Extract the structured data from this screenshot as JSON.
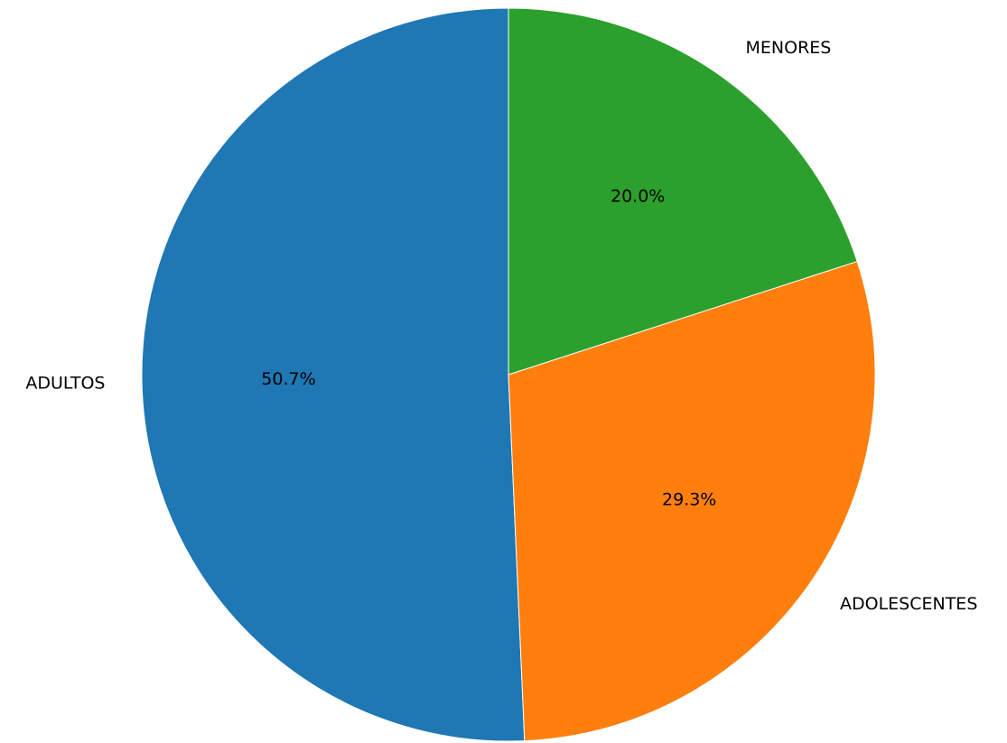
{
  "chart_data": {
    "type": "pie",
    "start_angle_deg": 90,
    "direction": "counterclockwise",
    "slices": [
      {
        "label": "ADULTOS",
        "value": 50.7,
        "pct_text": "50.7%",
        "color": "#1f77b4"
      },
      {
        "label": "ADOLESCENTES",
        "value": 29.3,
        "pct_text": "29.3%",
        "color": "#ff7f0e"
      },
      {
        "label": "MENORES",
        "value": 20.0,
        "pct_text": "20.0%",
        "color": "#2ca02c"
      }
    ]
  }
}
